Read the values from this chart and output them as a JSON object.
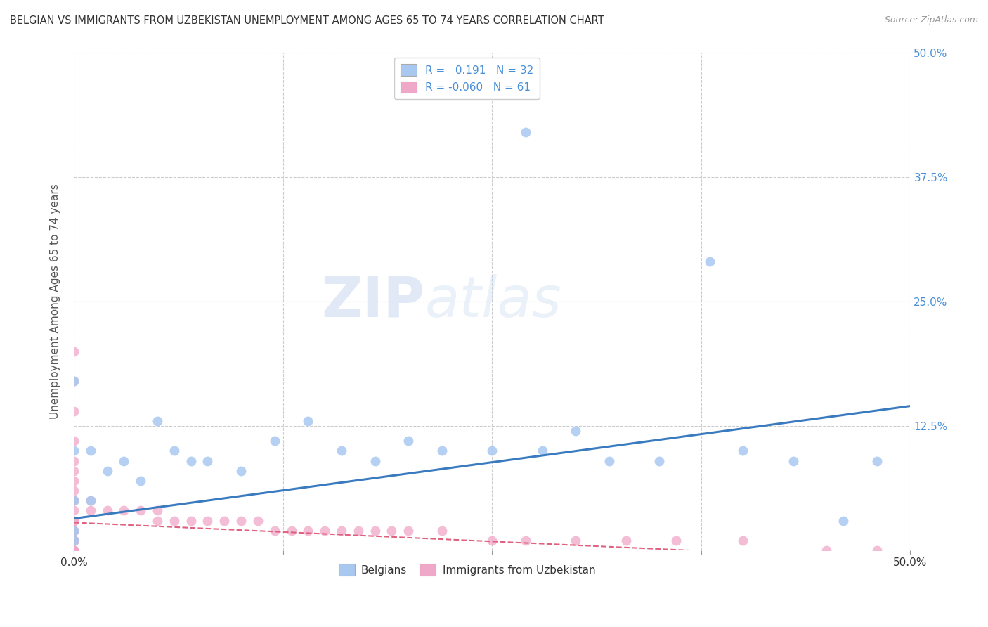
{
  "title": "BELGIAN VS IMMIGRANTS FROM UZBEKISTAN UNEMPLOYMENT AMONG AGES 65 TO 74 YEARS CORRELATION CHART",
  "source": "Source: ZipAtlas.com",
  "ylabel": "Unemployment Among Ages 65 to 74 years",
  "xlim": [
    0.0,
    0.5
  ],
  "ylim": [
    0.0,
    0.5
  ],
  "xticks": [
    0.0,
    0.125,
    0.25,
    0.375,
    0.5
  ],
  "xticklabels": [
    "0.0%",
    "",
    "",
    "",
    "50.0%"
  ],
  "yticks": [
    0.0,
    0.125,
    0.25,
    0.375,
    0.5
  ],
  "right_yticklabels": [
    "",
    "12.5%",
    "25.0%",
    "37.5%",
    "50.0%"
  ],
  "belgian_R": 0.191,
  "belgian_N": 32,
  "uzbek_R": -0.06,
  "uzbek_N": 61,
  "belgian_color": "#a8c8f0",
  "uzbek_color": "#f0a8c8",
  "belgian_line_color": "#3a7abf",
  "uzbek_line_color": "#e06080",
  "watermark_zip": "ZIP",
  "watermark_atlas": "atlas",
  "background_color": "#ffffff",
  "grid_color": "#cccccc",
  "tick_color": "#4a90d9",
  "belgian_x": [
    0.0,
    0.0,
    0.0,
    0.0,
    0.0,
    0.01,
    0.01,
    0.02,
    0.03,
    0.04,
    0.05,
    0.06,
    0.07,
    0.08,
    0.1,
    0.12,
    0.14,
    0.16,
    0.18,
    0.2,
    0.22,
    0.25,
    0.27,
    0.28,
    0.3,
    0.32,
    0.35,
    0.38,
    0.4,
    0.43,
    0.46,
    0.48
  ],
  "belgian_y": [
    0.17,
    0.1,
    0.05,
    0.02,
    0.01,
    0.1,
    0.05,
    0.08,
    0.09,
    0.07,
    0.13,
    0.1,
    0.09,
    0.09,
    0.08,
    0.11,
    0.13,
    0.1,
    0.09,
    0.11,
    0.1,
    0.1,
    0.42,
    0.1,
    0.12,
    0.09,
    0.09,
    0.29,
    0.1,
    0.09,
    0.03,
    0.09
  ],
  "uzbek_x": [
    0.0,
    0.0,
    0.0,
    0.0,
    0.0,
    0.0,
    0.0,
    0.0,
    0.0,
    0.0,
    0.0,
    0.0,
    0.0,
    0.0,
    0.0,
    0.0,
    0.0,
    0.0,
    0.0,
    0.0,
    0.0,
    0.0,
    0.0,
    0.0,
    0.0,
    0.0,
    0.0,
    0.0,
    0.0,
    0.0,
    0.01,
    0.01,
    0.02,
    0.03,
    0.04,
    0.05,
    0.05,
    0.06,
    0.07,
    0.08,
    0.09,
    0.1,
    0.11,
    0.12,
    0.13,
    0.14,
    0.15,
    0.16,
    0.17,
    0.18,
    0.19,
    0.2,
    0.22,
    0.25,
    0.27,
    0.3,
    0.33,
    0.36,
    0.4,
    0.45,
    0.48
  ],
  "uzbek_y": [
    0.2,
    0.17,
    0.14,
    0.11,
    0.09,
    0.08,
    0.07,
    0.06,
    0.05,
    0.05,
    0.04,
    0.03,
    0.03,
    0.02,
    0.02,
    0.01,
    0.01,
    0.01,
    0.01,
    0.01,
    0.01,
    0.01,
    0.01,
    0.0,
    0.0,
    0.0,
    0.0,
    0.0,
    0.0,
    0.0,
    0.05,
    0.04,
    0.04,
    0.04,
    0.04,
    0.04,
    0.03,
    0.03,
    0.03,
    0.03,
    0.03,
    0.03,
    0.03,
    0.02,
    0.02,
    0.02,
    0.02,
    0.02,
    0.02,
    0.02,
    0.02,
    0.02,
    0.02,
    0.01,
    0.01,
    0.01,
    0.01,
    0.01,
    0.01,
    0.0,
    0.0
  ],
  "belgian_line_x0": 0.0,
  "belgian_line_y0": 0.032,
  "belgian_line_x1": 0.5,
  "belgian_line_y1": 0.145,
  "uzbek_line_x0": 0.0,
  "uzbek_line_y0": 0.028,
  "uzbek_line_x1": 0.5,
  "uzbek_line_y1": -0.01
}
